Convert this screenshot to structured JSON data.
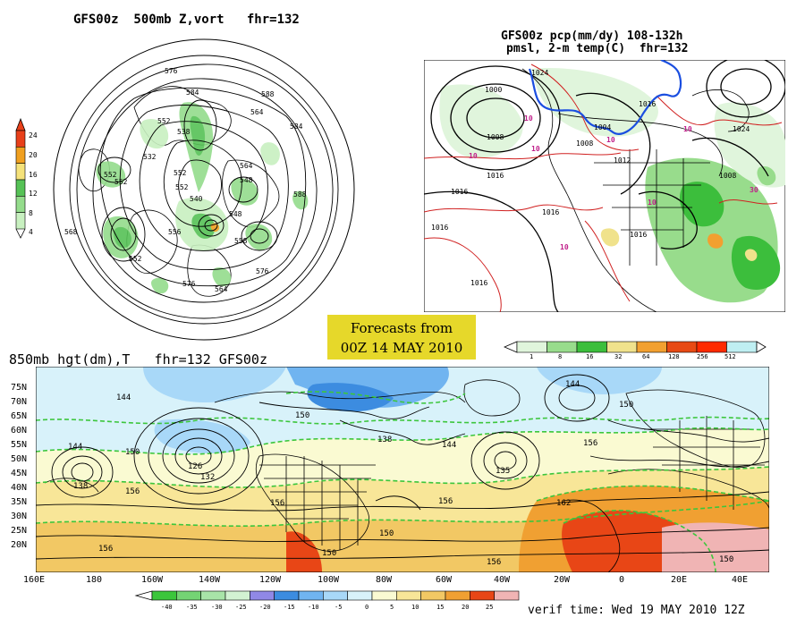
{
  "top_left": {
    "title": "GFS00z  500mb Z,vort   fhr=132",
    "scale_labels": [
      "24",
      "20",
      "16",
      "12",
      "8",
      "4"
    ],
    "scale_colors": [
      "#e8401a",
      "#f0a020",
      "#f5e27a",
      "#56c256",
      "#94dc8c",
      "#c8f0c0"
    ],
    "contour_labels": [
      "576",
      "584",
      "588",
      "552",
      "538",
      "532",
      "552",
      "540",
      "552",
      "548",
      "564",
      "548",
      "552",
      "568",
      "576",
      "564",
      "576",
      "588",
      "552",
      "556",
      "558",
      "584",
      "564",
      "552"
    ]
  },
  "top_right": {
    "title_line1": "GFS00z pcp(mm/dy) 108-132h",
    "title_line2": "pmsl, 2-m temp(C)  fhr=132",
    "pressure_labels": [
      "1000",
      "1008",
      "1016",
      "1024",
      "1012",
      "1016",
      "1008",
      "1016",
      "1004",
      "1008",
      "1024",
      "1016",
      "1016",
      "1016",
      "1016"
    ],
    "temp_labels": [
      "10",
      "10",
      "10",
      "10",
      "10",
      "10",
      "10",
      "30"
    ],
    "legend_labels": [
      "1",
      "8",
      "16",
      "32",
      "64",
      "128",
      "256",
      "512"
    ],
    "legend_colors": [
      "#e0f5dc",
      "#98dc8c",
      "#3cbe3c",
      "#f0e28c",
      "#f2a030",
      "#e84a14",
      "#ff2a00",
      "#bfeff2"
    ]
  },
  "forecast_box": {
    "line1": "Forecasts from",
    "line2": "00Z 14 MAY 2010"
  },
  "bottom": {
    "title": "850mb hgt(dm),T   fhr=132 GFS00z",
    "lat_labels": [
      "75N",
      "70N",
      "65N",
      "60N",
      "55N",
      "50N",
      "45N",
      "40N",
      "35N",
      "30N",
      "25N",
      "20N"
    ],
    "lon_labels": [
      "160E",
      "180",
      "160W",
      "140W",
      "120W",
      "100W",
      "80W",
      "60W",
      "40W",
      "20W",
      "0",
      "20E",
      "40E"
    ],
    "height_labels": [
      "144",
      "138",
      "126",
      "132",
      "150",
      "156",
      "144",
      "150",
      "138",
      "144",
      "135",
      "156",
      "144",
      "150",
      "156",
      "156",
      "162",
      "150",
      "150",
      "156",
      "150",
      "156"
    ],
    "legend_labels": [
      "-40",
      "-35",
      "-30",
      "-25",
      "-20",
      "-15",
      "-10",
      "-5",
      "0",
      "5",
      "10",
      "15",
      "20",
      "25"
    ],
    "legend_colors": [
      "#3cc63c",
      "#74d474",
      "#a8e4a8",
      "#d2f2d2",
      "#9088e6",
      "#3c8ce0",
      "#70b4f0",
      "#a8d8f8",
      "#d8f2fa",
      "#fafad2",
      "#f8e698",
      "#f2c864",
      "#f0a032",
      "#e84616",
      "#f0b4b4"
    ],
    "verif_time": "verif time: Wed 19 MAY 2010 12Z"
  }
}
